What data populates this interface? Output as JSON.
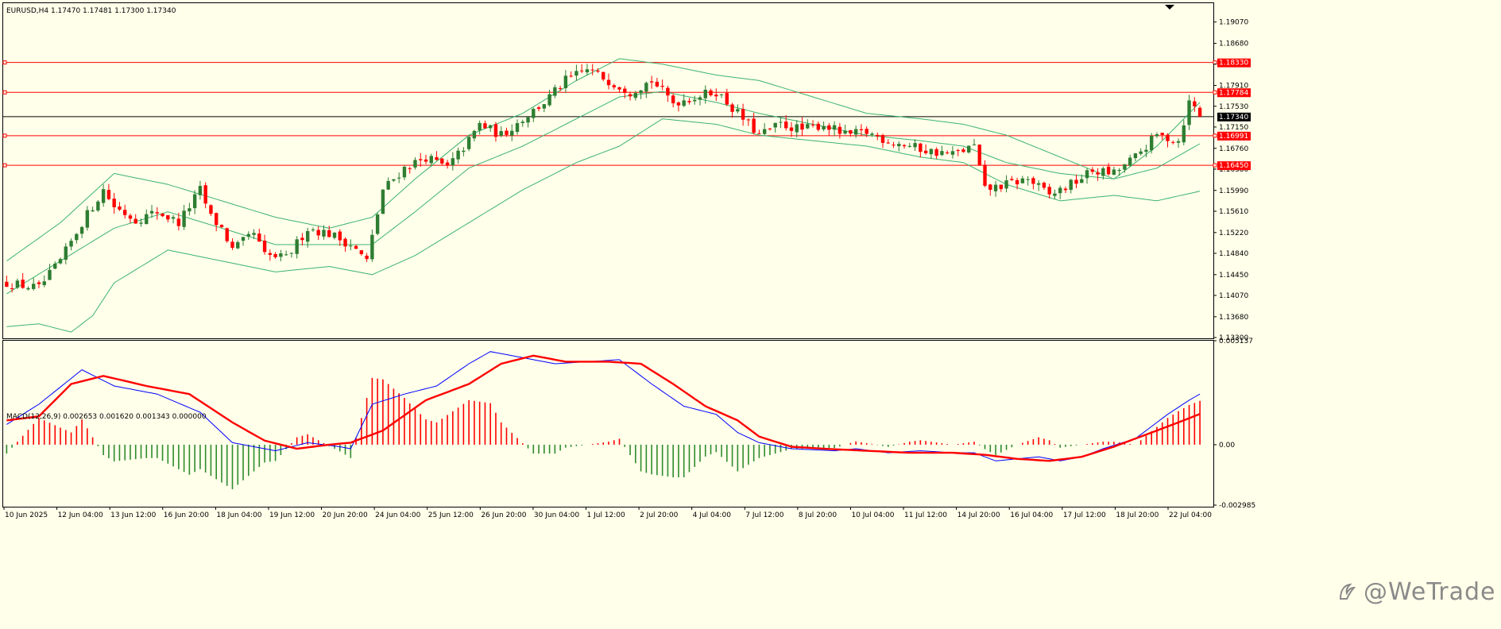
{
  "main_chart": {
    "header": "EURUSD,H4  1.17470 1.17481 1.17300 1.17340",
    "price_axis": {
      "min": 1.133,
      "max": 1.194,
      "ticks": [
        "1.19070",
        "1.18680",
        "1.18300",
        "1.17910",
        "1.17530",
        "1.17150",
        "1.16760",
        "1.16380",
        "1.15990",
        "1.15610",
        "1.15220",
        "1.14840",
        "1.14450",
        "1.14070",
        "1.13680",
        "1.13300"
      ]
    },
    "horizontal_lines": [
      {
        "price": 1.1833,
        "label": "1.18330",
        "color": "#ff0000"
      },
      {
        "price": 1.17784,
        "label": "1.17784",
        "color": "#ff0000"
      },
      {
        "price": 1.16991,
        "label": "1.16991",
        "color": "#ff0000"
      },
      {
        "price": 1.1645,
        "label": "1.16450",
        "color": "#ff0000"
      }
    ],
    "current_price": {
      "price": 1.1734,
      "label": "1.17340",
      "color": "#000000"
    },
    "colors": {
      "bull": "#2e7d32",
      "bear": "#ff0000",
      "bands": "#3cb371",
      "background": "#ffffea"
    }
  },
  "macd": {
    "header": "MACD(12,26,9) 0.002653 0.001620 0.001343 0.000000",
    "axis_ticks": {
      "top": "0.005137",
      "zero": "0.00",
      "bottom": "-0.002985"
    },
    "min": -0.002985,
    "max": 0.005137,
    "colors": {
      "macd_line": "#0000ff",
      "signal_line": "#ff0000",
      "hist_pos": "#ff0000",
      "hist_neg": "#2e8b2e"
    }
  },
  "time_axis": [
    "10 Jun 2025",
    "12 Jun 04:00",
    "13 Jun 12:00",
    "16 Jun 20:00",
    "18 Jun 04:00",
    "19 Jun 12:00",
    "20 Jun 20:00",
    "24 Jun 04:00",
    "25 Jun 12:00",
    "26 Jun 20:00",
    "30 Jun 04:00",
    "1 Jul 12:00",
    "2 Jul 20:00",
    "4 Jul 04:00",
    "7 Jul 12:00",
    "8 Jul 20:00",
    "10 Jul 04:00",
    "11 Jul 12:00",
    "14 Jul 20:00",
    "16 Jul 04:00",
    "17 Jul 12:00",
    "18 Jul 20:00",
    "22 Jul 04:00"
  ],
  "chart_data": {
    "type": "candlestick",
    "symbol": "EURUSD",
    "timeframe": "H4",
    "close_path": [
      [
        0,
        1.143
      ],
      [
        6,
        1.142
      ],
      [
        10,
        1.147
      ],
      [
        14,
        1.154
      ],
      [
        18,
        1.16
      ],
      [
        20,
        1.157
      ],
      [
        24,
        1.1545
      ],
      [
        28,
        1.156
      ],
      [
        32,
        1.154
      ],
      [
        36,
        1.16
      ],
      [
        38,
        1.155
      ],
      [
        40,
        1.153
      ],
      [
        42,
        1.149
      ],
      [
        46,
        1.152
      ],
      [
        48,
        1.148
      ],
      [
        52,
        1.1475
      ],
      [
        56,
        1.153
      ],
      [
        60,
        1.152
      ],
      [
        64,
        1.15
      ],
      [
        67,
        1.147
      ],
      [
        70,
        1.16
      ],
      [
        74,
        1.164
      ],
      [
        78,
        1.166
      ],
      [
        82,
        1.164
      ],
      [
        86,
        1.169
      ],
      [
        88,
        1.172
      ],
      [
        92,
        1.17
      ],
      [
        96,
        1.173
      ],
      [
        100,
        1.176
      ],
      [
        104,
        1.18
      ],
      [
        108,
        1.182
      ],
      [
        112,
        1.18
      ],
      [
        116,
        1.178
      ],
      [
        120,
        1.18
      ],
      [
        124,
        1.176
      ],
      [
        128,
        1.177
      ],
      [
        132,
        1.178
      ],
      [
        136,
        1.174
      ],
      [
        140,
        1.17
      ],
      [
        144,
        1.172
      ],
      [
        148,
        1.171
      ],
      [
        152,
        1.172
      ],
      [
        156,
        1.17
      ],
      [
        160,
        1.1705
      ],
      [
        164,
        1.169
      ],
      [
        168,
        1.168
      ],
      [
        172,
        1.167
      ],
      [
        176,
        1.1665
      ],
      [
        180,
        1.168
      ],
      [
        182,
        1.16
      ],
      [
        186,
        1.161
      ],
      [
        190,
        1.162
      ],
      [
        194,
        1.159
      ],
      [
        198,
        1.161
      ],
      [
        202,
        1.1635
      ],
      [
        206,
        1.163
      ],
      [
        210,
        1.166
      ],
      [
        214,
        1.17
      ],
      [
        218,
        1.169
      ],
      [
        220,
        1.176
      ],
      [
        223,
        1.1734
      ]
    ],
    "upper_band_path": [
      [
        0,
        1.147
      ],
      [
        10,
        1.154
      ],
      [
        20,
        1.163
      ],
      [
        30,
        1.161
      ],
      [
        40,
        1.158
      ],
      [
        50,
        1.155
      ],
      [
        60,
        1.153
      ],
      [
        68,
        1.155
      ],
      [
        76,
        1.162
      ],
      [
        86,
        1.17
      ],
      [
        96,
        1.174
      ],
      [
        106,
        1.18
      ],
      [
        114,
        1.184
      ],
      [
        122,
        1.183
      ],
      [
        132,
        1.181
      ],
      [
        140,
        1.18
      ],
      [
        150,
        1.177
      ],
      [
        160,
        1.174
      ],
      [
        170,
        1.173
      ],
      [
        178,
        1.172
      ],
      [
        186,
        1.17
      ],
      [
        196,
        1.166
      ],
      [
        206,
        1.162
      ],
      [
        214,
        1.168
      ],
      [
        223,
        1.177
      ]
    ],
    "middle_band_path": [
      [
        0,
        1.141
      ],
      [
        10,
        1.147
      ],
      [
        20,
        1.153
      ],
      [
        30,
        1.156
      ],
      [
        40,
        1.153
      ],
      [
        50,
        1.15
      ],
      [
        60,
        1.15
      ],
      [
        68,
        1.15
      ],
      [
        76,
        1.156
      ],
      [
        86,
        1.164
      ],
      [
        96,
        1.168
      ],
      [
        106,
        1.173
      ],
      [
        114,
        1.177
      ],
      [
        122,
        1.178
      ],
      [
        132,
        1.176
      ],
      [
        140,
        1.174
      ],
      [
        150,
        1.172
      ],
      [
        160,
        1.17
      ],
      [
        170,
        1.169
      ],
      [
        178,
        1.168
      ],
      [
        186,
        1.165
      ],
      [
        196,
        1.163
      ],
      [
        206,
        1.162
      ],
      [
        214,
        1.164
      ],
      [
        223,
        1.169
      ]
    ],
    "lower_band_path": [
      [
        0,
        1.135
      ],
      [
        6,
        1.1355
      ],
      [
        12,
        1.134
      ],
      [
        16,
        1.137
      ],
      [
        20,
        1.143
      ],
      [
        30,
        1.149
      ],
      [
        40,
        1.147
      ],
      [
        50,
        1.145
      ],
      [
        60,
        1.146
      ],
      [
        68,
        1.1445
      ],
      [
        76,
        1.148
      ],
      [
        86,
        1.154
      ],
      [
        96,
        1.16
      ],
      [
        106,
        1.165
      ],
      [
        114,
        1.168
      ],
      [
        122,
        1.173
      ],
      [
        132,
        1.172
      ],
      [
        140,
        1.17
      ],
      [
        150,
        1.169
      ],
      [
        160,
        1.168
      ],
      [
        170,
        1.166
      ],
      [
        178,
        1.165
      ],
      [
        186,
        1.161
      ],
      [
        196,
        1.158
      ],
      [
        206,
        1.159
      ],
      [
        214,
        1.158
      ],
      [
        223,
        1.16
      ]
    ],
    "macd_path": [
      [
        0,
        0.001
      ],
      [
        6,
        0.002
      ],
      [
        14,
        0.0037
      ],
      [
        20,
        0.0029
      ],
      [
        28,
        0.0025
      ],
      [
        36,
        0.0016
      ],
      [
        42,
        0.0001
      ],
      [
        50,
        -0.0003
      ],
      [
        56,
        0.0001
      ],
      [
        62,
        -0.0001
      ],
      [
        64,
        -0.0002
      ],
      [
        68,
        0.002
      ],
      [
        74,
        0.0025
      ],
      [
        80,
        0.0029
      ],
      [
        86,
        0.004
      ],
      [
        90,
        0.0046
      ],
      [
        96,
        0.0043
      ],
      [
        102,
        0.004
      ],
      [
        108,
        0.0041
      ],
      [
        114,
        0.0042
      ],
      [
        120,
        0.003
      ],
      [
        126,
        0.0019
      ],
      [
        132,
        0.0015
      ],
      [
        136,
        0.0006
      ],
      [
        140,
        0.0001
      ],
      [
        146,
        -0.0002
      ],
      [
        154,
        -0.0003
      ],
      [
        158,
        -0.0002
      ],
      [
        164,
        -0.0004
      ],
      [
        170,
        -0.0003
      ],
      [
        176,
        -0.0004
      ],
      [
        180,
        -0.0004
      ],
      [
        184,
        -0.0008
      ],
      [
        188,
        -0.0007
      ],
      [
        192,
        -0.0006
      ],
      [
        196,
        -0.0008
      ],
      [
        200,
        -0.0006
      ],
      [
        204,
        -0.0002
      ],
      [
        210,
        0.0003
      ],
      [
        216,
        0.0015
      ],
      [
        220,
        0.0022
      ],
      [
        223,
        0.00265
      ]
    ],
    "signal_path": [
      [
        0,
        0.0012
      ],
      [
        6,
        0.0014
      ],
      [
        12,
        0.003
      ],
      [
        18,
        0.0034
      ],
      [
        26,
        0.0029
      ],
      [
        34,
        0.0025
      ],
      [
        42,
        0.0011
      ],
      [
        48,
        0.0002
      ],
      [
        54,
        -0.0002
      ],
      [
        60,
        0.0
      ],
      [
        64,
        0.0001
      ],
      [
        70,
        0.0007
      ],
      [
        78,
        0.0022
      ],
      [
        86,
        0.003
      ],
      [
        92,
        0.004
      ],
      [
        98,
        0.0044
      ],
      [
        104,
        0.0041
      ],
      [
        112,
        0.0041
      ],
      [
        118,
        0.004
      ],
      [
        124,
        0.003
      ],
      [
        130,
        0.0019
      ],
      [
        136,
        0.0012
      ],
      [
        140,
        0.0004
      ],
      [
        146,
        -0.0001
      ],
      [
        152,
        -0.0002
      ],
      [
        160,
        -0.0003
      ],
      [
        168,
        -0.0004
      ],
      [
        176,
        -0.0004
      ],
      [
        182,
        -0.0005
      ],
      [
        188,
        -0.0007
      ],
      [
        194,
        -0.0008
      ],
      [
        200,
        -0.0006
      ],
      [
        206,
        -0.0001
      ],
      [
        212,
        0.0005
      ],
      [
        218,
        0.0011
      ],
      [
        223,
        0.00162
      ]
    ]
  },
  "watermark": {
    "text": "@WeTrade",
    "color": "#8a8a8a"
  }
}
